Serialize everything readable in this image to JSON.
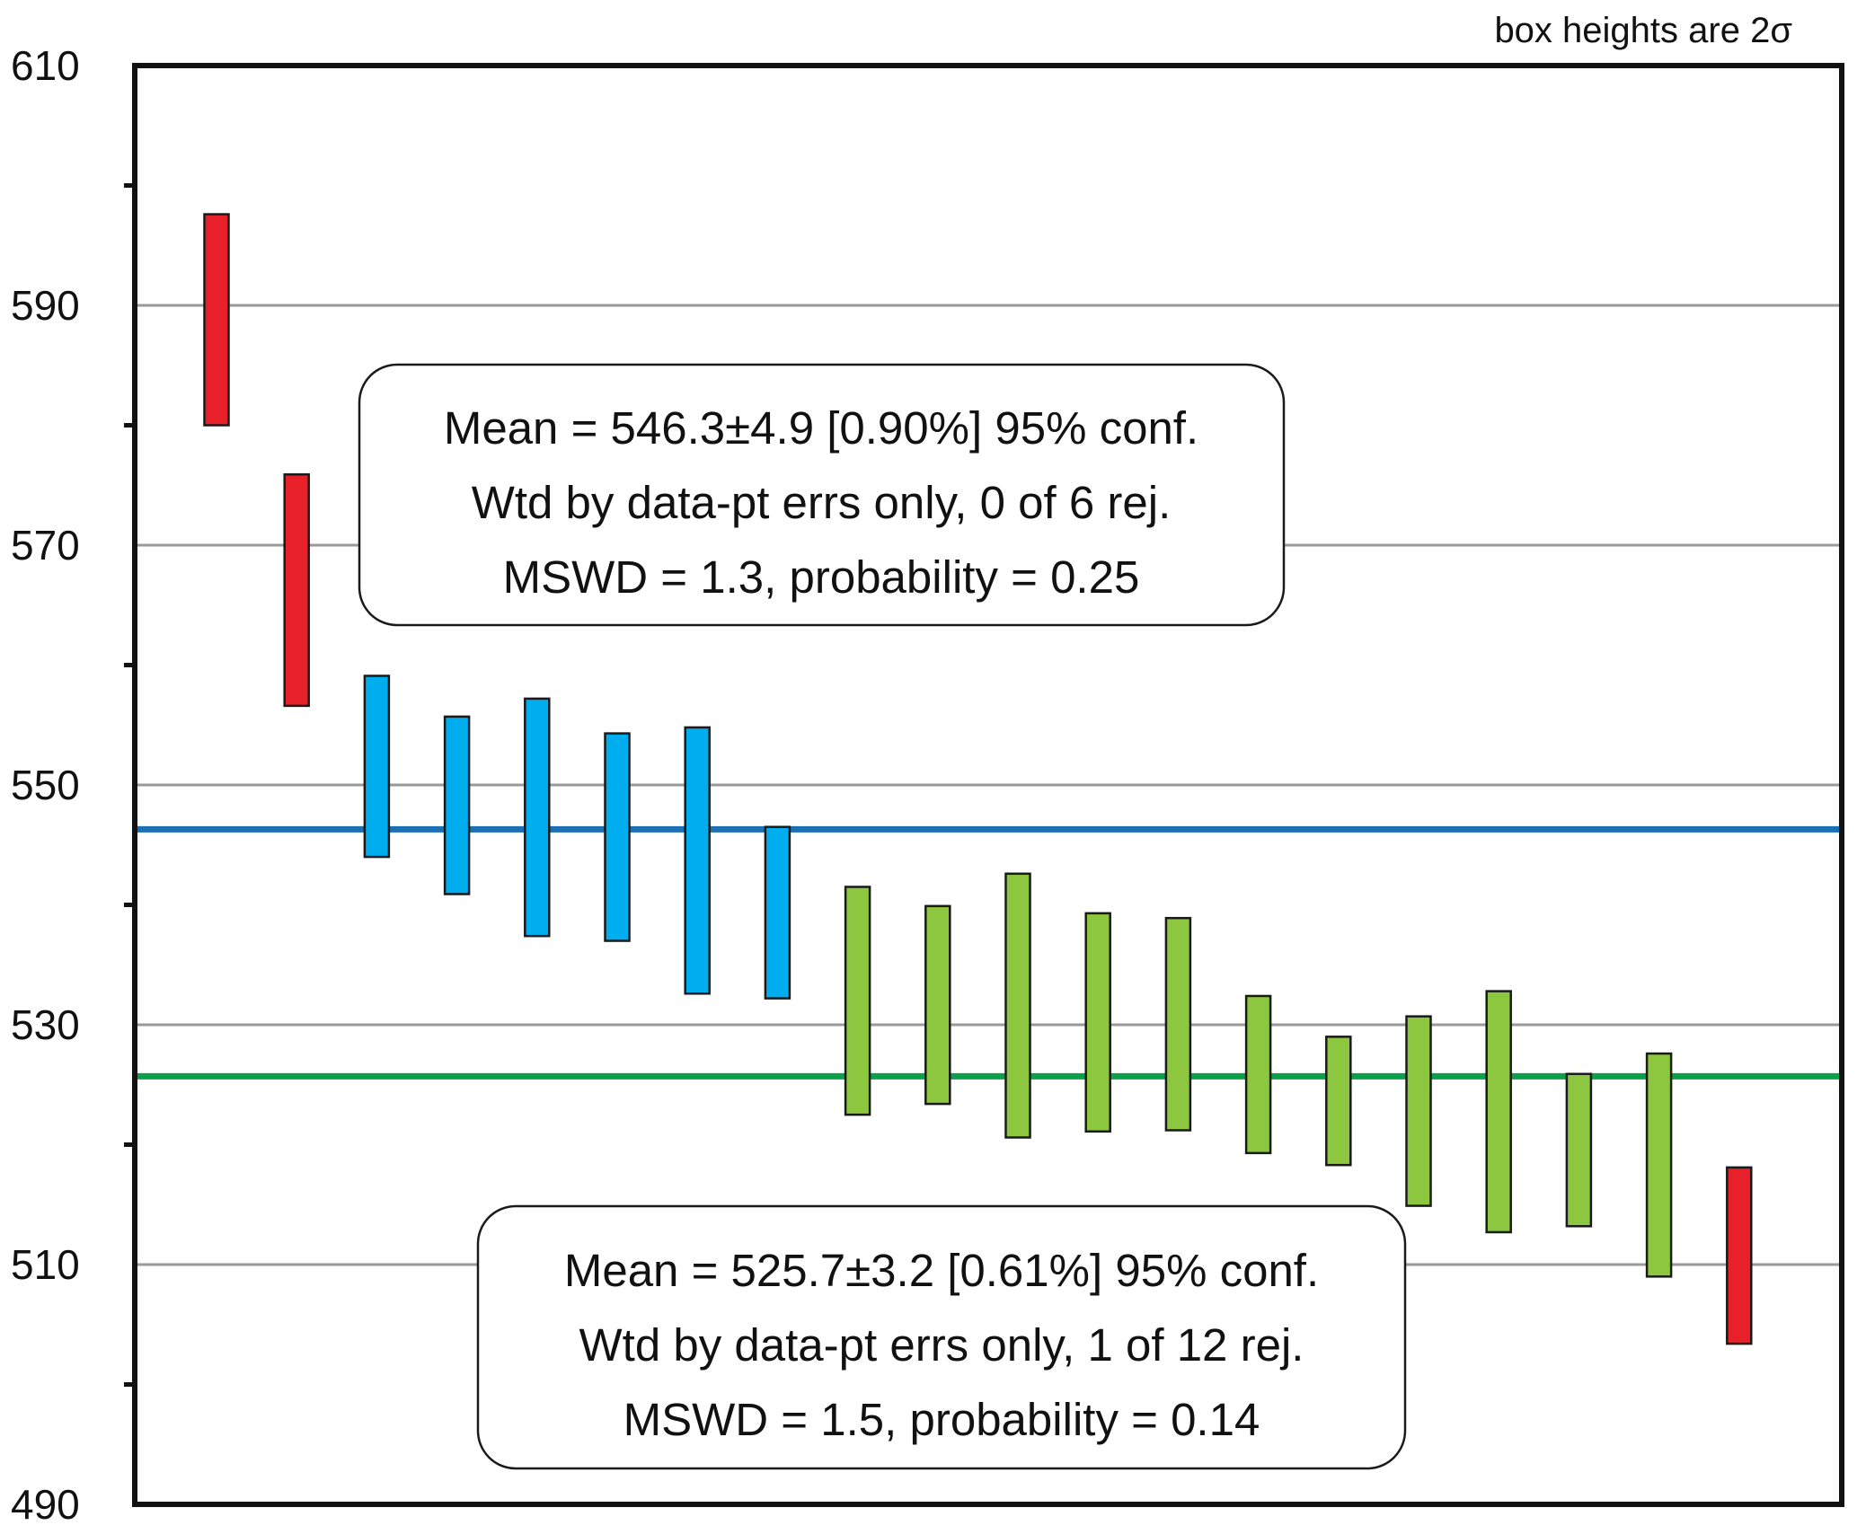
{
  "chart_data": {
    "type": "box_error_plot",
    "note": "box heights are 2σ",
    "ylim": [
      490,
      610
    ],
    "yticks": [
      490,
      510,
      530,
      550,
      570,
      590,
      610
    ],
    "grid": true,
    "colors": {
      "rejected": "#e8202a",
      "group1": "#00aeef",
      "group2": "#8dc63f",
      "mean_line_1": "#1a6fb5",
      "mean_line_2": "#0aa14a",
      "grid": "#9a9a9a"
    },
    "points": [
      {
        "index": 1,
        "low": 580.0,
        "high": 597.6,
        "group": "rejected"
      },
      {
        "index": 2,
        "low": 556.6,
        "high": 575.9,
        "group": "rejected"
      },
      {
        "index": 3,
        "low": 544.0,
        "high": 559.1,
        "group": "group1"
      },
      {
        "index": 4,
        "low": 540.9,
        "high": 555.7,
        "group": "group1"
      },
      {
        "index": 5,
        "low": 537.4,
        "high": 557.2,
        "group": "group1"
      },
      {
        "index": 6,
        "low": 537.0,
        "high": 554.3,
        "group": "group1"
      },
      {
        "index": 7,
        "low": 532.6,
        "high": 554.8,
        "group": "group1"
      },
      {
        "index": 8,
        "low": 532.2,
        "high": 546.5,
        "group": "group1"
      },
      {
        "index": 9,
        "low": 522.5,
        "high": 541.5,
        "group": "group2"
      },
      {
        "index": 10,
        "low": 523.4,
        "high": 539.9,
        "group": "group2"
      },
      {
        "index": 11,
        "low": 520.6,
        "high": 542.6,
        "group": "group2"
      },
      {
        "index": 12,
        "low": 521.1,
        "high": 539.3,
        "group": "group2"
      },
      {
        "index": 13,
        "low": 521.2,
        "high": 538.9,
        "group": "group2"
      },
      {
        "index": 14,
        "low": 519.3,
        "high": 532.4,
        "group": "group2"
      },
      {
        "index": 15,
        "low": 518.3,
        "high": 529.0,
        "group": "group2"
      },
      {
        "index": 16,
        "low": 514.9,
        "high": 530.7,
        "group": "group2"
      },
      {
        "index": 17,
        "low": 512.7,
        "high": 532.8,
        "group": "group2"
      },
      {
        "index": 18,
        "low": 513.2,
        "high": 525.9,
        "group": "group2"
      },
      {
        "index": 19,
        "low": 509.0,
        "high": 527.6,
        "group": "group2"
      },
      {
        "index": 20,
        "low": 503.4,
        "high": 518.1,
        "group": "rejected"
      }
    ],
    "mean_lines": [
      {
        "value": 546.3,
        "group": "group1"
      },
      {
        "value": 525.7,
        "group": "group2"
      }
    ],
    "annotations": [
      {
        "group": "group1",
        "lines": [
          "Mean = 546.3±4.9  [0.90%]  95% conf.",
          "Wtd by data-pt errs only, 0 of 6 rej.",
          "MSWD = 1.3, probability = 0.25"
        ]
      },
      {
        "group": "group2",
        "lines": [
          "Mean = 525.7±3.2  [0.61%]  95% conf.",
          "Wtd by data-pt errs only, 1 of 12 rej.",
          "MSWD = 1.5, probability = 0.14"
        ]
      }
    ]
  }
}
